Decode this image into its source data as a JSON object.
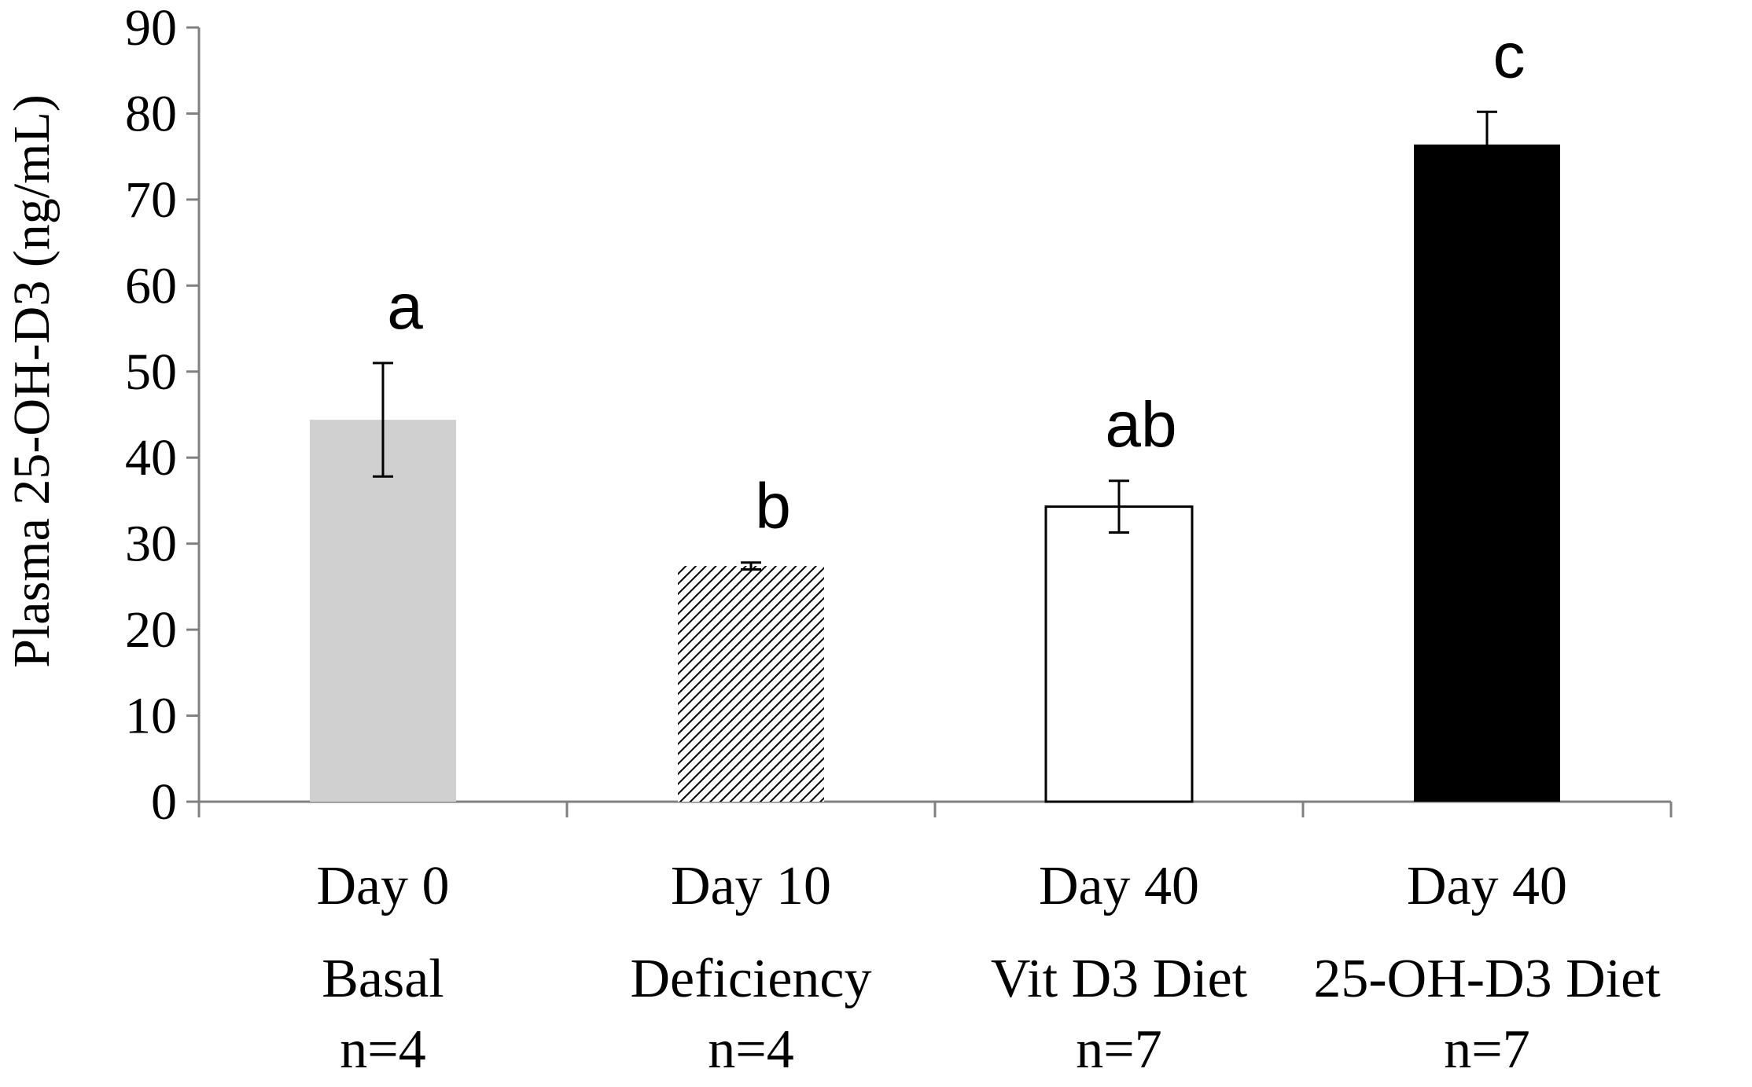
{
  "chart_data": {
    "type": "bar",
    "title": "",
    "xlabel": "",
    "ylabel": "Plasma 25-OH-D3 (ng/mL)",
    "ylim": [
      0,
      90
    ],
    "yticks": [
      0,
      10,
      20,
      30,
      40,
      50,
      60,
      70,
      80,
      90
    ],
    "grid": false,
    "categories": [
      {
        "line1": "Day 0",
        "line2": "Basal",
        "line3": "n=4"
      },
      {
        "line1": "Day 10",
        "line2": "Deficiency",
        "line3": "n=4"
      },
      {
        "line1": "Day 40",
        "line2": "Vit D3 Diet",
        "line3": "n=7"
      },
      {
        "line1": "Day 40",
        "line2": "25-OH-D3 Diet",
        "line3": "n=7"
      }
    ],
    "values": [
      44.4,
      27.4,
      34.3,
      76.4
    ],
    "errors": [
      6.6,
      0.4,
      3.0,
      3.8
    ],
    "significance": [
      "a",
      "b",
      "ab",
      "c"
    ],
    "bar_fills": [
      "gray",
      "hatched",
      "white",
      "black"
    ],
    "colors": {
      "gray": "#d0d0d0",
      "hatch": "#000000",
      "white": "#ffffff",
      "black": "#000000",
      "axis": "#808080"
    }
  }
}
